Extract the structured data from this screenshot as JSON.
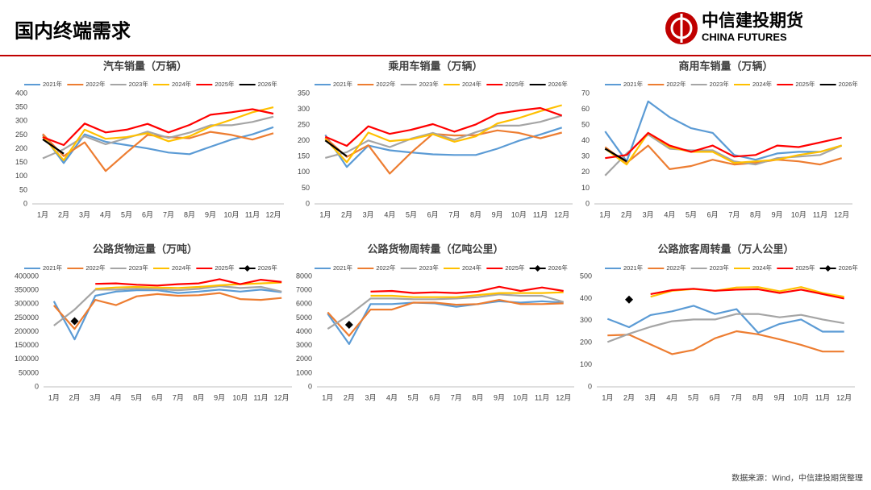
{
  "header": {
    "title": "国内终端需求",
    "logo_cn": "中信建投期货",
    "logo_en": "CHINA FUTURES"
  },
  "footer": {
    "source": "数据来源：Wind，中信建投期货整理"
  },
  "chart_data": [
    {
      "type": "line",
      "title": "汽车销量（万辆）",
      "legend": "top",
      "grid": false,
      "categories": [
        "1月",
        "2月",
        "3月",
        "4月",
        "5月",
        "6月",
        "7月",
        "8月",
        "9月",
        "10月",
        "11月",
        "12月"
      ],
      "ylim": [
        0,
        400
      ],
      "yticks": [
        0,
        50,
        100,
        150,
        200,
        250,
        300,
        350,
        400
      ],
      "series": [
        {
          "name": "2021年",
          "color": "#5b9bd5",
          "values": [
            250,
            148,
            252,
            225,
            213,
            201,
            186,
            180,
            207,
            233,
            252,
            278
          ]
        },
        {
          "name": "2022年",
          "color": "#ed7d31",
          "values": [
            253,
            173,
            223,
            119,
            186,
            250,
            242,
            238,
            261,
            250,
            233,
            256
          ]
        },
        {
          "name": "2023年",
          "color": "#a5a5a5",
          "values": [
            165,
            198,
            245,
            216,
            238,
            262,
            239,
            258,
            285,
            285,
            297,
            316
          ]
        },
        {
          "name": "2024年",
          "color": "#ffc000",
          "values": [
            244,
            158,
            269,
            236,
            242,
            256,
            227,
            245,
            280,
            305,
            332,
            350
          ]
        },
        {
          "name": "2025年",
          "color": "#ff0000",
          "values": [
            242,
            213,
            291,
            259,
            269,
            290,
            259,
            286,
            323,
            332,
            343,
            327
          ]
        },
        {
          "name": "2026年",
          "color": "#000000",
          "values": [
            234,
            182,
            null,
            null,
            null,
            null,
            null,
            null,
            null,
            null,
            null,
            null
          ]
        }
      ]
    },
    {
      "type": "line",
      "title": "乘用车销量（万辆）",
      "legend": "top",
      "grid": false,
      "categories": [
        "1月",
        "2月",
        "3月",
        "4月",
        "5月",
        "6月",
        "7月",
        "8月",
        "9月",
        "10月",
        "11月",
        "12月"
      ],
      "ylim": [
        0,
        350
      ],
      "yticks": [
        0,
        50,
        100,
        150,
        200,
        250,
        300,
        350
      ],
      "series": [
        {
          "name": "2021年",
          "color": "#5b9bd5",
          "values": [
            219,
            117,
            185,
            170,
            163,
            157,
            155,
            155,
            175,
            200,
            220,
            242
          ]
        },
        {
          "name": "2022年",
          "color": "#ed7d31",
          "values": [
            210,
            149,
            186,
            96,
            163,
            222,
            217,
            218,
            233,
            225,
            208,
            226
          ]
        },
        {
          "name": "2023年",
          "color": "#a5a5a5",
          "values": [
            146,
            164,
            201,
            180,
            207,
            225,
            203,
            227,
            248,
            248,
            260,
            280
          ]
        },
        {
          "name": "2024年",
          "color": "#ffc000",
          "values": [
            206,
            132,
            226,
            199,
            205,
            221,
            197,
            214,
            255,
            272,
            294,
            313
          ]
        },
        {
          "name": "2025年",
          "color": "#ff0000",
          "values": [
            213,
            184,
            246,
            222,
            235,
            253,
            229,
            252,
            286,
            296,
            304,
            280
          ]
        },
        {
          "name": "2026年",
          "color": "#000000",
          "values": [
            201,
            151,
            null,
            null,
            null,
            null,
            null,
            null,
            null,
            null,
            null,
            null
          ]
        }
      ]
    },
    {
      "type": "line",
      "title": "商用车销量（万辆）",
      "legend": "top",
      "grid": false,
      "categories": [
        "1月",
        "2月",
        "3月",
        "4月",
        "5月",
        "6月",
        "7月",
        "8月",
        "9月",
        "10月",
        "11月",
        "12月"
      ],
      "ylim": [
        0,
        70
      ],
      "yticks": [
        0,
        10,
        20,
        30,
        40,
        50,
        60,
        70
      ],
      "series": [
        {
          "name": "2021年",
          "color": "#5b9bd5",
          "values": [
            46,
            27,
            65,
            55,
            48,
            45,
            31,
            28,
            32,
            33,
            33,
            37
          ]
        },
        {
          "name": "2022年",
          "color": "#ed7d31",
          "values": [
            36,
            26,
            37,
            22,
            24,
            28,
            25,
            26,
            28,
            27,
            25,
            29
          ]
        },
        {
          "name": "2023年",
          "color": "#a5a5a5",
          "values": [
            18,
            32,
            44,
            35,
            34,
            34,
            27,
            25,
            29,
            30,
            31,
            37
          ]
        },
        {
          "name": "2024年",
          "color": "#ffc000",
          "values": [
            35,
            25,
            45,
            36,
            33,
            33,
            26,
            27,
            28,
            31,
            33,
            37
          ]
        },
        {
          "name": "2025年",
          "color": "#ff0000",
          "values": [
            29,
            31,
            45,
            37,
            33,
            37,
            30,
            31,
            37,
            36,
            39,
            42
          ]
        },
        {
          "name": "2026年",
          "color": "#000000",
          "values": [
            35,
            27,
            null,
            null,
            null,
            null,
            null,
            null,
            null,
            null,
            null,
            null
          ]
        }
      ]
    },
    {
      "type": "line",
      "title": "公路货物运量（万吨）",
      "legend": "top",
      "grid": false,
      "categories": [
        "1月",
        "2月",
        "3月",
        "4月",
        "5月",
        "6月",
        "7月",
        "8月",
        "9月",
        "10月",
        "11月",
        "12月"
      ],
      "ylim": [
        0,
        400000
      ],
      "yticks": [
        0,
        50000,
        100000,
        150000,
        200000,
        250000,
        300000,
        350000,
        400000
      ],
      "series": [
        {
          "name": "2021年",
          "color": "#5b9bd5",
          "values": [
            310000,
            172000,
            330000,
            345000,
            350000,
            350000,
            340000,
            345000,
            352000,
            345000,
            352000,
            343000
          ]
        },
        {
          "name": "2022年",
          "color": "#ed7d31",
          "values": [
            295000,
            210000,
            315000,
            296000,
            328000,
            336000,
            330000,
            332000,
            340000,
            318000,
            315000,
            322000
          ]
        },
        {
          "name": "2023年",
          "color": "#a5a5a5",
          "values": [
            222000,
            280000,
            352000,
            352000,
            356000,
            354000,
            350000,
            355000,
            365000,
            358000,
            362000,
            345000
          ]
        },
        {
          "name": "2024年",
          "color": "#ffc000",
          "values": [
            null,
            null,
            355000,
            360000,
            362000,
            360000,
            358000,
            362000,
            368000,
            372000,
            375000,
            378000
          ]
        },
        {
          "name": "2025年",
          "color": "#ff0000",
          "values": [
            null,
            null,
            373000,
            375000,
            370000,
            367000,
            372000,
            375000,
            390000,
            372000,
            388000,
            380000
          ]
        },
        {
          "name": "2026年",
          "color": "#000000",
          "marker": "diamond",
          "values": [
            null,
            238000,
            null,
            null,
            null,
            null,
            null,
            null,
            null,
            null,
            null,
            null
          ]
        }
      ]
    },
    {
      "type": "line",
      "title": "公路货物周转量（亿吨公里）",
      "legend": "top",
      "grid": false,
      "categories": [
        "1月",
        "2月",
        "3月",
        "4月",
        "5月",
        "6月",
        "7月",
        "8月",
        "9月",
        "10月",
        "11月",
        "12月"
      ],
      "ylim": [
        0,
        8000
      ],
      "yticks": [
        0,
        1000,
        2000,
        3000,
        4000,
        5000,
        6000,
        7000,
        8000
      ],
      "series": [
        {
          "name": "2021年",
          "color": "#5b9bd5",
          "values": [
            5300,
            3100,
            6000,
            6000,
            6100,
            6050,
            5800,
            6000,
            6200,
            6100,
            6200,
            6100
          ]
        },
        {
          "name": "2022年",
          "color": "#ed7d31",
          "values": [
            5400,
            3700,
            5600,
            5600,
            6100,
            6100,
            5950,
            6000,
            6300,
            6000,
            6000,
            6050
          ]
        },
        {
          "name": "2023年",
          "color": "#a5a5a5",
          "values": [
            4200,
            5200,
            6400,
            6400,
            6350,
            6350,
            6400,
            6500,
            6700,
            6600,
            6600,
            6150
          ]
        },
        {
          "name": "2024年",
          "color": "#ffc000",
          "values": [
            null,
            null,
            6600,
            6600,
            6500,
            6500,
            6500,
            6650,
            6800,
            6800,
            6800,
            6850
          ]
        },
        {
          "name": "2025年",
          "color": "#ff0000",
          "values": [
            null,
            null,
            6900,
            6950,
            6800,
            6850,
            6800,
            6900,
            7250,
            6950,
            7200,
            6950
          ]
        },
        {
          "name": "2026年",
          "color": "#000000",
          "marker": "diamond",
          "values": [
            null,
            4500,
            null,
            null,
            null,
            null,
            null,
            null,
            null,
            null,
            null,
            null
          ]
        }
      ]
    },
    {
      "type": "line",
      "title": "公路旅客周转量（万人公里）",
      "legend": "top",
      "grid": false,
      "categories": [
        "1月",
        "2月",
        "3月",
        "4月",
        "5月",
        "6月",
        "7月",
        "8月",
        "9月",
        "10月",
        "11月",
        "12月"
      ],
      "ylim": [
        0,
        500
      ],
      "yticks": [
        0,
        100,
        200,
        300,
        400,
        500
      ],
      "series": [
        {
          "name": "2021年",
          "color": "#5b9bd5",
          "values": [
            308,
            270,
            325,
            342,
            367,
            330,
            352,
            245,
            285,
            305,
            250,
            250
          ]
        },
        {
          "name": "2022年",
          "color": "#ed7d31",
          "values": [
            233,
            236,
            192,
            148,
            167,
            220,
            252,
            238,
            215,
            190,
            160,
            160
          ]
        },
        {
          "name": "2023年",
          "color": "#a5a5a5",
          "values": [
            203,
            240,
            272,
            297,
            305,
            305,
            330,
            330,
            315,
            326,
            305,
            288
          ]
        },
        {
          "name": "2024年",
          "color": "#ffc000",
          "values": [
            null,
            null,
            408,
            435,
            443,
            435,
            450,
            452,
            433,
            452,
            425,
            408
          ]
        },
        {
          "name": "2025年",
          "color": "#ff0000",
          "values": [
            null,
            null,
            420,
            438,
            444,
            435,
            440,
            442,
            425,
            440,
            420,
            400
          ]
        },
        {
          "name": "2026年",
          "color": "#000000",
          "marker": "diamond",
          "values": [
            null,
            395,
            null,
            null,
            null,
            null,
            null,
            null,
            null,
            null,
            null,
            null
          ]
        }
      ]
    }
  ]
}
